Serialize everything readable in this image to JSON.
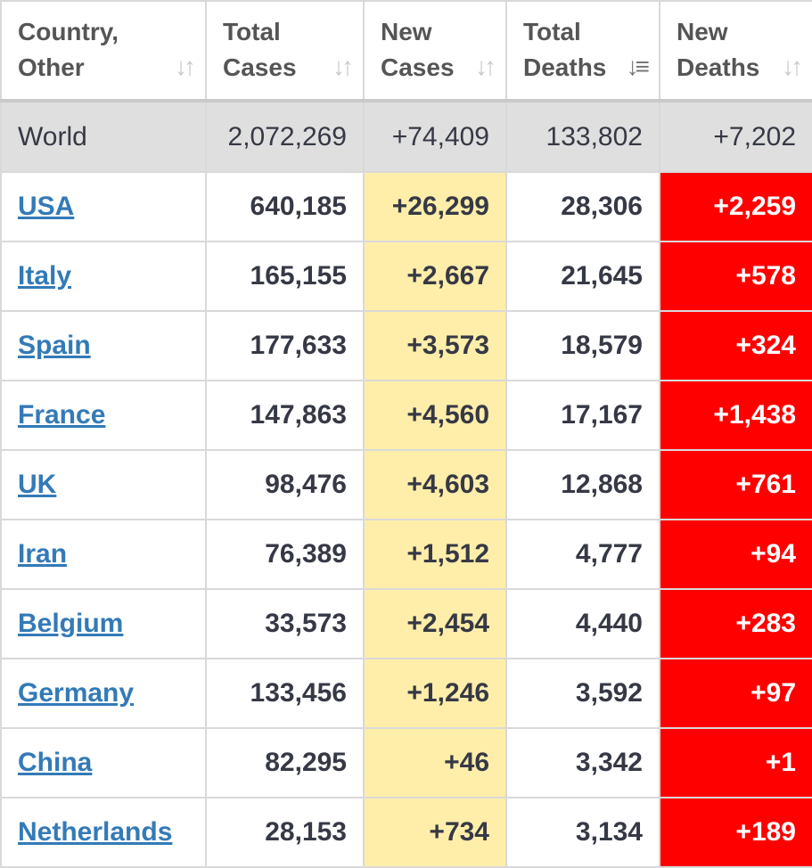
{
  "colors": {
    "link": "#337ab7",
    "new_cases_bg": "#ffeeaa",
    "new_deaths_bg": "#ff0000",
    "world_row_bg": "#dfdfdf",
    "text": "#363945"
  },
  "headers": [
    {
      "line1": "Country,",
      "line2": "Other",
      "icon": "sort-both-icon"
    },
    {
      "line1": "Total",
      "line2": "Cases",
      "icon": "sort-both-icon"
    },
    {
      "line1": "New",
      "line2": "Cases",
      "icon": "sort-both-icon"
    },
    {
      "line1": "Total",
      "line2": "Deaths",
      "icon": "sort-descending-icon"
    },
    {
      "line1": "New",
      "line2": "Deaths",
      "icon": "sort-both-icon"
    }
  ],
  "world": {
    "name": "World",
    "total_cases": "2,072,269",
    "new_cases": "+74,409",
    "total_deaths": "133,802",
    "new_deaths": "+7,202"
  },
  "rows": [
    {
      "country": "USA",
      "total_cases": "640,185",
      "new_cases": "+26,299",
      "total_deaths": "28,306",
      "new_deaths": "+2,259"
    },
    {
      "country": "Italy",
      "total_cases": "165,155",
      "new_cases": "+2,667",
      "total_deaths": "21,645",
      "new_deaths": "+578"
    },
    {
      "country": "Spain",
      "total_cases": "177,633",
      "new_cases": "+3,573",
      "total_deaths": "18,579",
      "new_deaths": "+324"
    },
    {
      "country": "France",
      "total_cases": "147,863",
      "new_cases": "+4,560",
      "total_deaths": "17,167",
      "new_deaths": "+1,438"
    },
    {
      "country": "UK",
      "total_cases": "98,476",
      "new_cases": "+4,603",
      "total_deaths": "12,868",
      "new_deaths": "+761"
    },
    {
      "country": "Iran",
      "total_cases": "76,389",
      "new_cases": "+1,512",
      "total_deaths": "4,777",
      "new_deaths": "+94"
    },
    {
      "country": "Belgium",
      "total_cases": "33,573",
      "new_cases": "+2,454",
      "total_deaths": "4,440",
      "new_deaths": "+283"
    },
    {
      "country": "Germany",
      "total_cases": "133,456",
      "new_cases": "+1,246",
      "total_deaths": "3,592",
      "new_deaths": "+97"
    },
    {
      "country": "China",
      "total_cases": "82,295",
      "new_cases": "+46",
      "total_deaths": "3,342",
      "new_deaths": "+1"
    },
    {
      "country": "Netherlands",
      "total_cases": "28,153",
      "new_cases": "+734",
      "total_deaths": "3,134",
      "new_deaths": "+189"
    }
  ]
}
